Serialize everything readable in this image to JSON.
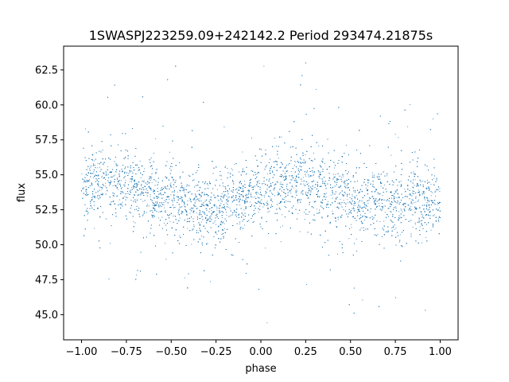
{
  "chart_data": {
    "type": "scatter",
    "title": "1SWASPJ223259.09+242142.2 Period 293474.21875s",
    "xlabel": "phase",
    "ylabel": "flux",
    "xlim": [
      -1.1,
      1.1
    ],
    "ylim": [
      43.2,
      64.2
    ],
    "xticks": [
      -1.0,
      -0.75,
      -0.5,
      -0.25,
      0.0,
      0.25,
      0.5,
      0.75,
      1.0
    ],
    "xtick_labels": [
      "−1.00",
      "−0.75",
      "−0.50",
      "−0.25",
      "0.00",
      "0.25",
      "0.50",
      "0.75",
      "1.00"
    ],
    "yticks": [
      45.0,
      47.5,
      50.0,
      52.5,
      55.0,
      57.5,
      60.0,
      62.5
    ],
    "ytick_labels": [
      "45.0",
      "47.5",
      "50.0",
      "52.5",
      "55.0",
      "57.5",
      "60.0",
      "62.5"
    ],
    "grid": false,
    "marker_color": "#1f77b4",
    "series": [
      {
        "x_range": [
          -1.0,
          1.0
        ],
        "typical_flux_by_phase": {
          "x": [
            -1.0,
            -0.875,
            -0.75,
            -0.625,
            -0.5,
            -0.375,
            -0.25,
            -0.125,
            0.0,
            0.125,
            0.25,
            0.375,
            0.5,
            0.625,
            0.75,
            0.875,
            1.0
          ],
          "y": [
            53.8,
            54.5,
            54.3,
            53.6,
            53.2,
            52.8,
            52.4,
            53.2,
            53.8,
            54.3,
            54.4,
            53.8,
            53.3,
            53.0,
            52.6,
            53.0,
            53.4
          ]
        },
        "flux_range": [
          44.0,
          63.3
        ]
      }
    ]
  }
}
